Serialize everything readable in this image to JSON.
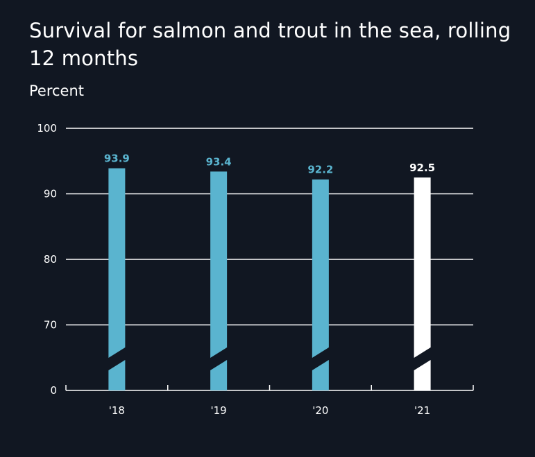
{
  "chart_data": {
    "type": "bar",
    "title": "Survival for salmon and trout in the sea, rolling 12 months",
    "subtitle": "Percent",
    "xlabel": "",
    "ylabel": "",
    "categories": [
      "'18",
      "'19",
      "'20",
      "'21"
    ],
    "values": [
      93.9,
      93.4,
      92.2,
      92.5
    ],
    "value_labels": [
      "93.9",
      "93.4",
      "92.2",
      "92.5"
    ],
    "y_ticks": [
      "0",
      "70",
      "80",
      "90",
      "100"
    ],
    "ylim": [
      0,
      100
    ],
    "axis_break": true,
    "grid": true,
    "legend": "none",
    "colors": {
      "background": "#111722",
      "bar": "#5ab4cf",
      "highlight_bar": "#ffffff",
      "text": "#ffffff",
      "grid": "#ffffff"
    },
    "highlight_index": 3
  }
}
